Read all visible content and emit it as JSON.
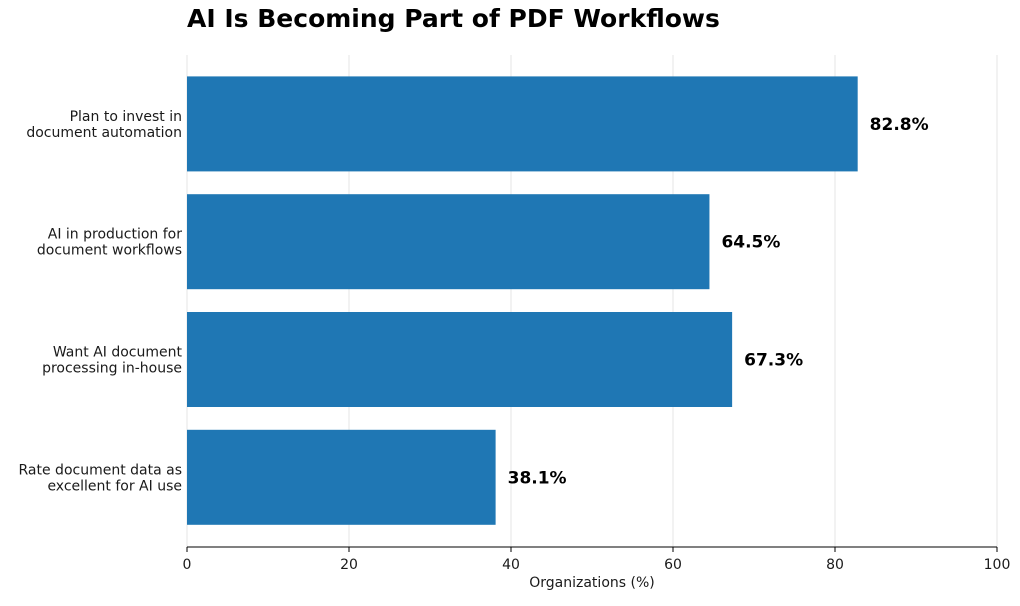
{
  "chart_data": {
    "type": "bar",
    "orientation": "horizontal",
    "title": "AI Is Becoming Part of PDF Workflows",
    "xlabel": "Organizations (%)",
    "ylabel": "",
    "xlim": [
      0,
      100
    ],
    "xticks": [
      0,
      20,
      40,
      60,
      80,
      100
    ],
    "grid": "vertical",
    "categories": [
      [
        "Plan to invest in",
        "document automation"
      ],
      [
        "AI in production for",
        "document workflows"
      ],
      [
        "Want AI document",
        "processing in-house"
      ],
      [
        "Rate document data as",
        "excellent for AI use"
      ]
    ],
    "values": [
      82.8,
      64.5,
      67.3,
      38.1
    ],
    "value_labels": [
      "82.8%",
      "64.5%",
      "67.3%",
      "38.1%"
    ],
    "bar_color": "#1f77b4"
  }
}
